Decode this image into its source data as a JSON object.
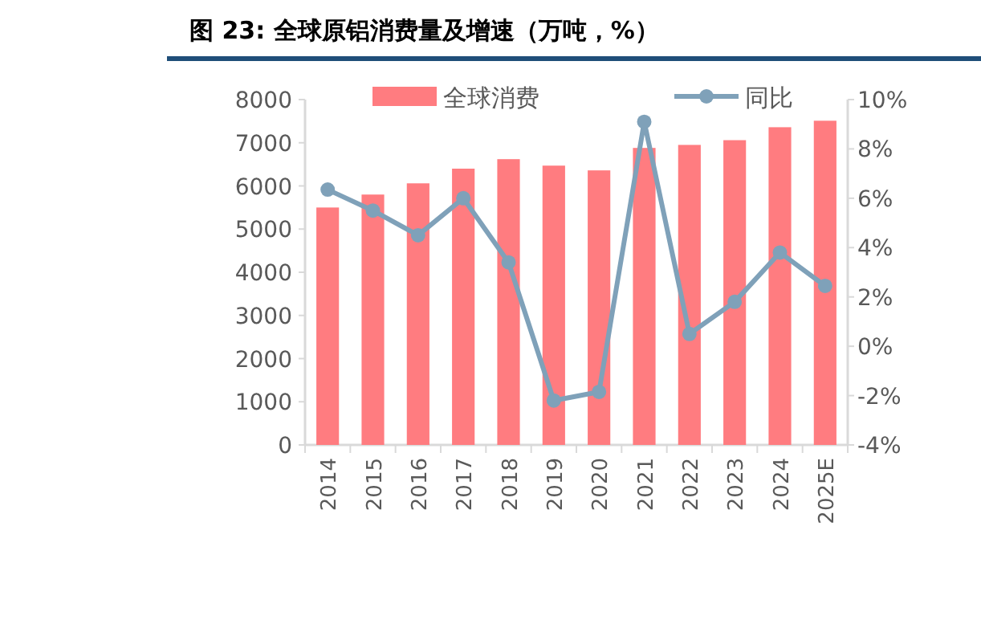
{
  "chart_data": {
    "type": "bar",
    "title": "图 23: 全球原铝消费量及增速（万吨，%）",
    "categories": [
      "2014",
      "2015",
      "2016",
      "2017",
      "2018",
      "2019",
      "2020",
      "2021",
      "2022",
      "2023",
      "2024",
      "2025E"
    ],
    "series": [
      {
        "name": "全球消费",
        "color": "#ff7c80",
        "values": [
          5500,
          5800,
          6060,
          6400,
          6620,
          6470,
          6360,
          6880,
          6950,
          7060,
          7360,
          7510
        ]
      },
      {
        "name": "同比",
        "type": "line",
        "axis": "y2",
        "color": "#7fa1b9",
        "marker": "circle",
        "values": [
          6.35,
          5.5,
          4.5,
          6.0,
          3.4,
          -2.2,
          -1.85,
          9.1,
          0.5,
          1.8,
          3.8,
          2.45
        ]
      }
    ],
    "ylim": [
      0,
      8000
    ],
    "yticks": [
      0,
      1000,
      2000,
      3000,
      4000,
      5000,
      6000,
      7000,
      8000
    ],
    "y2lim": [
      -4,
      10
    ],
    "y2ticks": [
      {
        "value": -4,
        "label": "-4%"
      },
      {
        "value": -2,
        "label": "-2%"
      },
      {
        "value": 0,
        "label": "0%"
      },
      {
        "value": 2,
        "label": "2%"
      },
      {
        "value": 4,
        "label": "4%"
      },
      {
        "value": 6,
        "label": "6%"
      },
      {
        "value": 8,
        "label": "8%"
      },
      {
        "value": 10,
        "label": "10%"
      }
    ],
    "grid": false,
    "legend": "top"
  }
}
